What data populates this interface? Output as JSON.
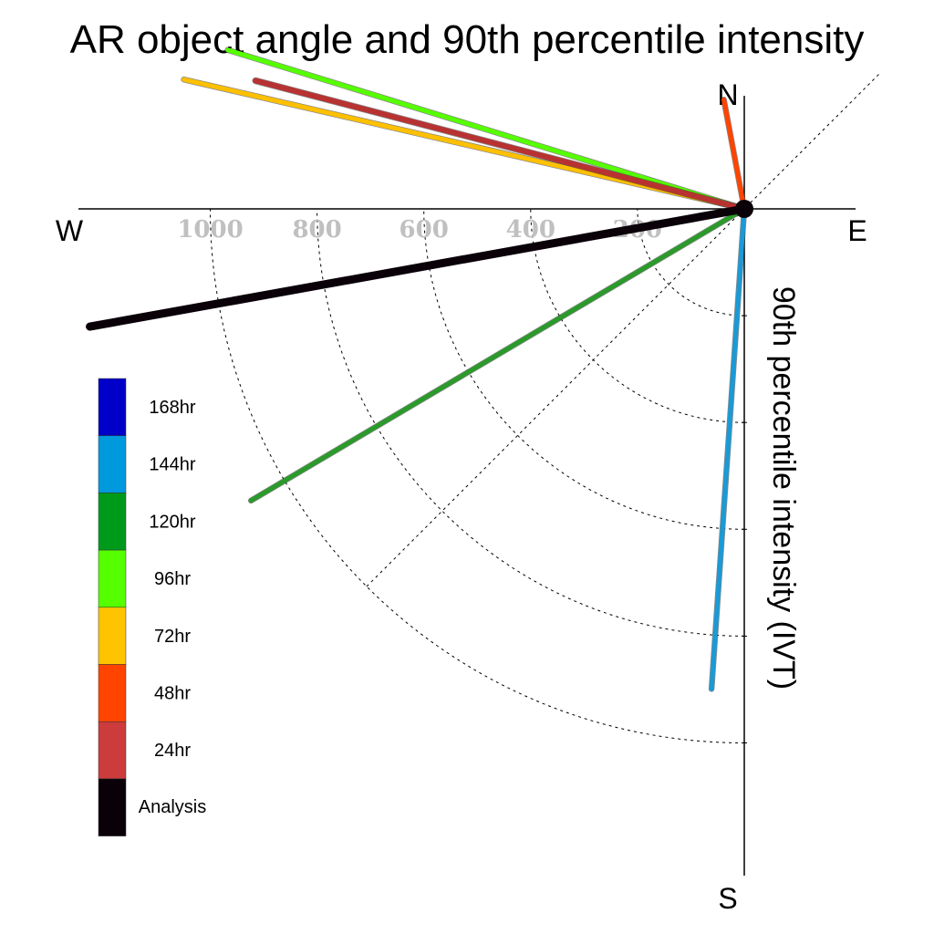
{
  "chart_data": {
    "type": "polar-line",
    "title": "AR object angle and 90th percentile intensity",
    "radial_label": "90th percentile intensity (IVT)",
    "compass": {
      "north": "N",
      "east": "E",
      "south": "S",
      "west": "W"
    },
    "radial_ticks": [
      200,
      400,
      600,
      800,
      1000
    ],
    "radial_tick_labels": [
      "200",
      "400",
      "600",
      "800",
      "1000"
    ],
    "rmax": 1250,
    "series": [
      {
        "name": "Analysis",
        "angle_deg": 259.8,
        "intensity": 1245,
        "color": "#0a0008",
        "width": 9
      },
      {
        "name": "24hr",
        "angle_deg": 284.7,
        "intensity": 946,
        "color": "#b83232",
        "width": 6
      },
      {
        "name": "48hr",
        "angle_deg": 349.4,
        "intensity": 208,
        "color": "#ff4400",
        "width": 5
      },
      {
        "name": "72hr",
        "angle_deg": 283.0,
        "intensity": 1077,
        "color": "#ffc000",
        "width": 5
      },
      {
        "name": "96hr",
        "angle_deg": 287.1,
        "intensity": 1012,
        "color": "#55ff00",
        "width": 5
      },
      {
        "name": "120hr",
        "angle_deg": 239.4,
        "intensity": 1073,
        "color": "#2a9a2a",
        "width": 5
      },
      {
        "name": "144hr",
        "angle_deg": 183.9,
        "intensity": 901,
        "color": "#1a9ad6",
        "width": 5
      },
      {
        "name": "168hr",
        "angle_deg": null,
        "intensity": null,
        "color": "#0a14c4",
        "width": 5
      }
    ],
    "legend": [
      {
        "label": "168hr",
        "color": "#0000c8"
      },
      {
        "label": "144hr",
        "color": "#0099dd"
      },
      {
        "label": "120hr",
        "color": "#009a1a"
      },
      {
        "label": "96hr",
        "color": "#55ff00"
      },
      {
        "label": "72hr",
        "color": "#ffc400"
      },
      {
        "label": "48hr",
        "color": "#ff4400"
      },
      {
        "label": "24hr",
        "color": "#cc3c3c"
      },
      {
        "label": "Analysis",
        "color": "#0a0008"
      }
    ]
  }
}
